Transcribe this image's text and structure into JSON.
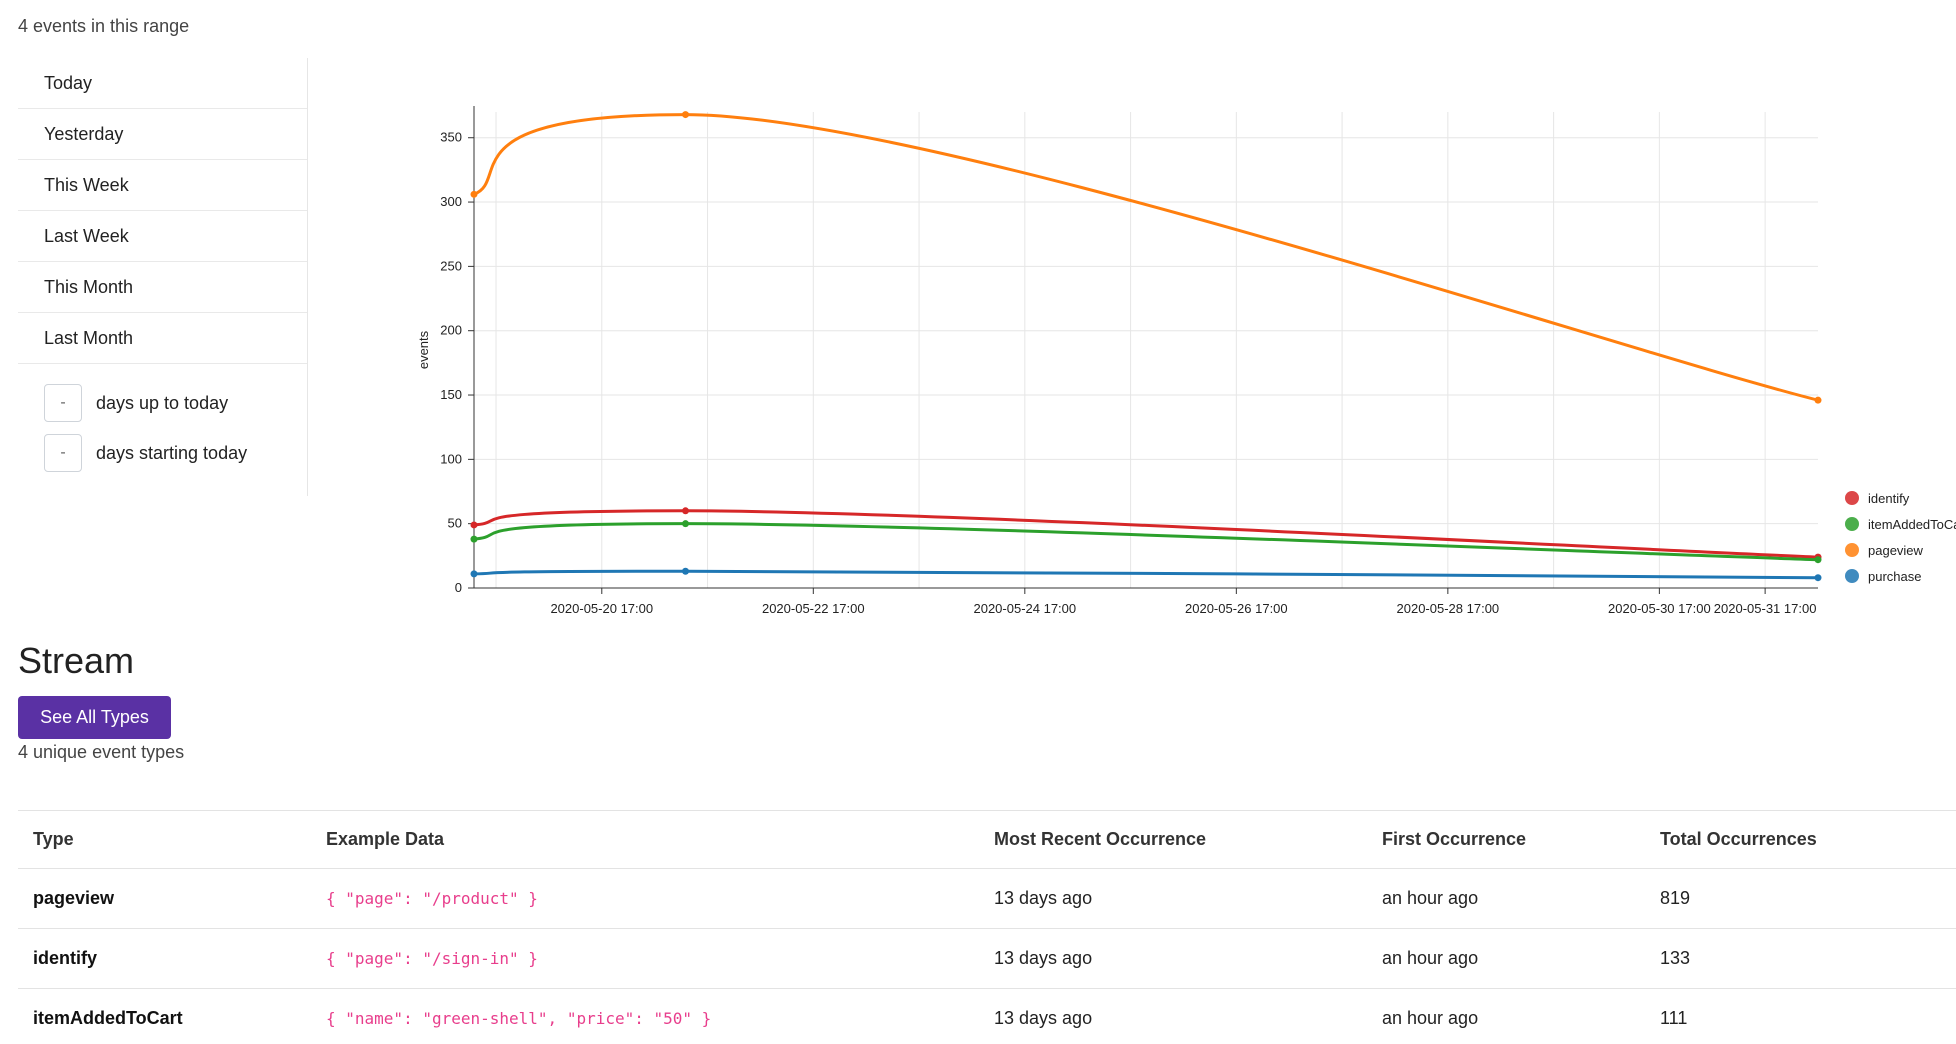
{
  "range_count_text": "4 events in this range",
  "sidebar": {
    "items": [
      {
        "label": "Today"
      },
      {
        "label": "Yesterday"
      },
      {
        "label": "This Week"
      },
      {
        "label": "Last Week"
      },
      {
        "label": "This Month"
      },
      {
        "label": "Last Month"
      }
    ],
    "days_up_to_today": {
      "value": "-",
      "label": "days up to today"
    },
    "days_starting_today": {
      "value": "-",
      "label": "days starting today"
    }
  },
  "chart_data": {
    "type": "line",
    "ylabel": "events",
    "xlabel": "",
    "ylim": [
      0,
      370
    ],
    "yticks": [
      0,
      50,
      100,
      150,
      200,
      250,
      300,
      350
    ],
    "xlim": [
      "2020-05-19 12:00",
      "2020-06-01 05:00"
    ],
    "xtick_labels": [
      "2020-05-20 17:00",
      "2020-05-22 17:00",
      "2020-05-24 17:00",
      "2020-05-26 17:00",
      "2020-05-28 17:00",
      "2020-05-30 17:00",
      "2020-05-31 17:00"
    ],
    "x": [
      "2020-05-19 12:00",
      "2020-05-21 12:00",
      "2020-06-01 05:00"
    ],
    "grid": true,
    "legend_position": "right",
    "series": [
      {
        "name": "identify",
        "color": "#d62728",
        "values": [
          49,
          60,
          24
        ]
      },
      {
        "name": "itemAddedToCart",
        "color": "#2ca02c",
        "values": [
          38,
          50,
          22
        ]
      },
      {
        "name": "pageview",
        "color": "#ff7f0e",
        "values": [
          306,
          368,
          146
        ]
      },
      {
        "name": "purchase",
        "color": "#1f77b4",
        "values": [
          11,
          13,
          8
        ]
      }
    ]
  },
  "stream": {
    "title": "Stream",
    "see_all_label": "See All Types",
    "unique_types_text": "4 unique event types"
  },
  "table": {
    "headers": [
      "Type",
      "Example Data",
      "Most Recent Occurrence",
      "First Occurrence",
      "Total Occurrences"
    ],
    "rows": [
      {
        "type": "pageview",
        "example": "{ \"page\": \"/product\" }",
        "most_recent": "13 days ago",
        "first": "an hour ago",
        "total": "819"
      },
      {
        "type": "identify",
        "example": "{ \"page\": \"/sign-in\" }",
        "most_recent": "13 days ago",
        "first": "an hour ago",
        "total": "133"
      },
      {
        "type": "itemAddedToCart",
        "example": "{ \"name\": \"green-shell\", \"price\": \"50\" }",
        "most_recent": "13 days ago",
        "first": "an hour ago",
        "total": "111"
      }
    ]
  }
}
